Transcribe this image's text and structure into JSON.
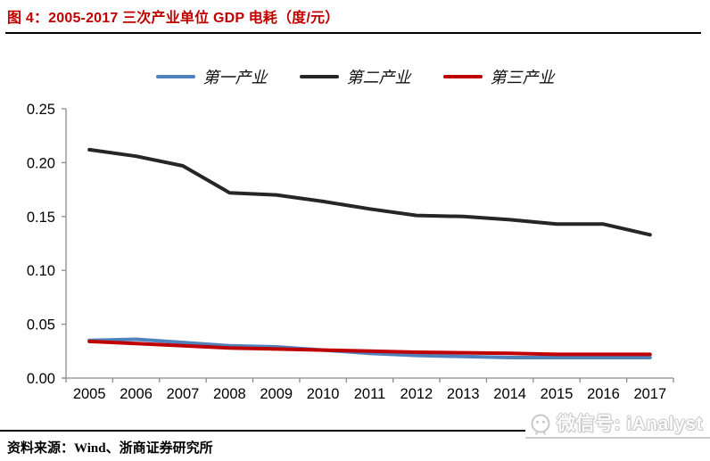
{
  "header": {
    "title": "图 4：2005-2017 三次产业单位 GDP 电耗（度/元）"
  },
  "legend": [
    {
      "label": "第一产业",
      "color": "#4F81BD"
    },
    {
      "label": "第二产业",
      "color": "#262626"
    },
    {
      "label": "第三产业",
      "color": "#C00000"
    }
  ],
  "chart_data": {
    "type": "line",
    "title": "2005-2017 三次产业单位 GDP 电耗（度/元）",
    "unit": "度/元",
    "categories": [
      "2005",
      "2006",
      "2007",
      "2008",
      "2009",
      "2010",
      "2011",
      "2012",
      "2013",
      "2014",
      "2015",
      "2016",
      "2017"
    ],
    "series": [
      {
        "name": "第一产业",
        "color": "#4F81BD",
        "values": [
          0.035,
          0.036,
          0.033,
          0.03,
          0.029,
          0.026,
          0.023,
          0.021,
          0.02,
          0.019,
          0.019,
          0.019,
          0.019
        ]
      },
      {
        "name": "第二产业",
        "color": "#262626",
        "values": [
          0.212,
          0.206,
          0.197,
          0.172,
          0.17,
          0.164,
          0.157,
          0.151,
          0.15,
          0.147,
          0.143,
          0.143,
          0.133
        ]
      },
      {
        "name": "第三产业",
        "color": "#C00000",
        "values": [
          0.034,
          0.032,
          0.03,
          0.028,
          0.027,
          0.026,
          0.025,
          0.024,
          0.0235,
          0.023,
          0.022,
          0.022,
          0.022
        ]
      }
    ],
    "ylim": [
      0,
      0.25
    ],
    "ytick_step": 0.05,
    "ytick_labels": [
      "0.00",
      "0.05",
      "0.10",
      "0.15",
      "0.20",
      "0.25"
    ],
    "grid": false,
    "legend_position": "top"
  },
  "footer": {
    "source": "资料来源：Wind、浙商证券研究所"
  },
  "watermark": {
    "text": "微信号: iAnalyst"
  },
  "colors": {
    "title_accent": "#C00000",
    "axis": "#8c8c8c",
    "watermark_gray": "#c4c4c4"
  }
}
